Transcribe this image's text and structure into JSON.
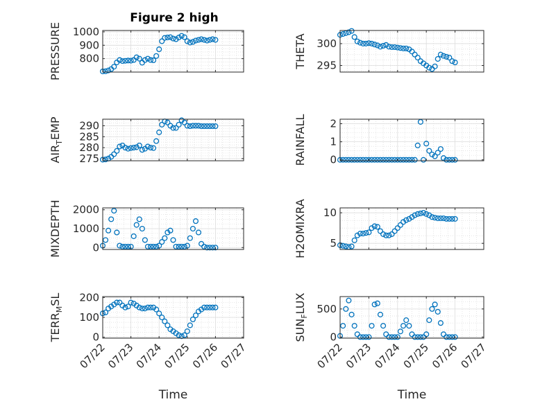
{
  "figure": {
    "title": "Figure 2 high"
  },
  "chart_data": [
    {
      "type": "scatter",
      "ylabel": "PRESSURE",
      "ylabel_parts": [
        "PRESSURE"
      ],
      "xlabel": "",
      "xlim": [
        "2014-07-22",
        "2014-07-27"
      ],
      "xticks": [
        "07/22",
        "07/23",
        "07/24",
        "07/25",
        "07/26",
        "07/27"
      ],
      "show_xticklabels": false,
      "ylim": [
        700,
        1010
      ],
      "yticks": [
        800,
        900,
        1000
      ],
      "grid": true,
      "marker_color": "#0072BD",
      "x_days": [
        0,
        0.1,
        0.2,
        0.3,
        0.4,
        0.5,
        0.6,
        0.7,
        0.8,
        0.9,
        1.0,
        1.1,
        1.2,
        1.3,
        1.4,
        1.5,
        1.6,
        1.7,
        1.8,
        1.9,
        2.0,
        2.1,
        2.2,
        2.3,
        2.4,
        2.5,
        2.6,
        2.7,
        2.8,
        2.9,
        3.0,
        3.1,
        3.2,
        3.3,
        3.4,
        3.5,
        3.6,
        3.7,
        3.8,
        3.9,
        4.0
      ],
      "y": [
        705,
        706,
        712,
        722,
        740,
        772,
        790,
        782,
        784,
        786,
        785,
        790,
        810,
        800,
        770,
        790,
        800,
        790,
        788,
        820,
        870,
        930,
        955,
        958,
        960,
        950,
        945,
        958,
        970,
        960,
        930,
        920,
        925,
        935,
        940,
        945,
        940,
        935,
        940,
        945,
        940
      ]
    },
    {
      "type": "scatter",
      "ylabel": "THETA",
      "ylabel_parts": [
        "THETA"
      ],
      "xlabel": "",
      "xlim": [
        "2014-07-22",
        "2014-07-27"
      ],
      "xticks": [
        "07/22",
        "07/23",
        "07/24",
        "07/25",
        "07/26",
        "07/27"
      ],
      "show_xticklabels": false,
      "ylim": [
        293.5,
        303
      ],
      "yticks": [
        295,
        300
      ],
      "grid": true,
      "marker_color": "#0072BD",
      "x_days": [
        0,
        0.1,
        0.2,
        0.3,
        0.4,
        0.5,
        0.6,
        0.7,
        0.8,
        0.9,
        1.0,
        1.1,
        1.2,
        1.3,
        1.4,
        1.5,
        1.6,
        1.7,
        1.8,
        1.9,
        2.0,
        2.1,
        2.2,
        2.3,
        2.4,
        2.5,
        2.6,
        2.7,
        2.8,
        2.9,
        3.0,
        3.1,
        3.2,
        3.3,
        3.4,
        3.5,
        3.6,
        3.7,
        3.8,
        3.9,
        4.0
      ],
      "y": [
        302.0,
        302.2,
        302.4,
        302.6,
        302.9,
        301.5,
        300.5,
        300.2,
        300.0,
        300.0,
        300.1,
        300.0,
        299.8,
        299.6,
        299.3,
        299.5,
        299.7,
        299.3,
        299.2,
        299.2,
        299.1,
        299.0,
        298.9,
        298.9,
        298.7,
        298.2,
        297.5,
        296.8,
        296.0,
        295.5,
        295.0,
        294.5,
        294.2,
        294.8,
        296.5,
        297.5,
        297.2,
        297.0,
        296.8,
        296.0,
        295.7
      ]
    },
    {
      "type": "scatter",
      "ylabel": "AIR_TEMP",
      "ylabel_parts": [
        "AIR",
        "T",
        "EMP"
      ],
      "xlabel": "",
      "xlim": [
        "2014-07-22",
        "2014-07-27"
      ],
      "xticks": [
        "07/22",
        "07/23",
        "07/24",
        "07/25",
        "07/26",
        "07/27"
      ],
      "show_xticklabels": false,
      "ylim": [
        274,
        293
      ],
      "yticks": [
        275,
        280,
        285,
        290
      ],
      "grid": true,
      "marker_color": "#0072BD",
      "x_days": [
        0,
        0.1,
        0.2,
        0.3,
        0.4,
        0.5,
        0.6,
        0.7,
        0.8,
        0.9,
        1.0,
        1.1,
        1.2,
        1.3,
        1.4,
        1.5,
        1.6,
        1.7,
        1.8,
        1.9,
        2.0,
        2.1,
        2.2,
        2.3,
        2.4,
        2.5,
        2.6,
        2.7,
        2.8,
        2.9,
        3.0,
        3.1,
        3.2,
        3.3,
        3.4,
        3.5,
        3.6,
        3.7,
        3.8,
        3.9,
        4.0
      ],
      "y": [
        274.5,
        274.6,
        275.0,
        275.8,
        277.0,
        278.5,
        280.5,
        281.0,
        280.0,
        279.5,
        279.8,
        280.0,
        280.2,
        281.0,
        279.0,
        279.5,
        280.5,
        280.0,
        279.8,
        283.0,
        287.0,
        290.5,
        292.0,
        291.5,
        290.0,
        289.0,
        289.0,
        290.5,
        292.5,
        291.5,
        290.0,
        289.8,
        290.0,
        290.0,
        290.0,
        289.8,
        289.8,
        289.8,
        289.8,
        289.8,
        289.8
      ]
    },
    {
      "type": "scatter",
      "ylabel": "RAINFALL",
      "ylabel_parts": [
        "RAINFALL"
      ],
      "xlabel": "",
      "xlim": [
        "2014-07-22",
        "2014-07-27"
      ],
      "xticks": [
        "07/22",
        "07/23",
        "07/24",
        "07/25",
        "07/26",
        "07/27"
      ],
      "show_xticklabels": false,
      "ylim": [
        -0.05,
        2.25
      ],
      "yticks": [
        0,
        1,
        2
      ],
      "grid": true,
      "marker_color": "#0072BD",
      "x_days": [
        0,
        0.1,
        0.2,
        0.3,
        0.4,
        0.5,
        0.6,
        0.7,
        0.8,
        0.9,
        1.0,
        1.1,
        1.2,
        1.3,
        1.4,
        1.5,
        1.6,
        1.7,
        1.8,
        1.9,
        2.0,
        2.1,
        2.2,
        2.3,
        2.4,
        2.5,
        2.6,
        2.7,
        2.8,
        2.9,
        3.0,
        3.1,
        3.2,
        3.3,
        3.4,
        3.5,
        3.6,
        3.7,
        3.8,
        3.9,
        4.0
      ],
      "y": [
        0,
        0,
        0,
        0,
        0,
        0,
        0,
        0,
        0,
        0,
        0,
        0,
        0,
        0,
        0,
        0,
        0,
        0,
        0,
        0,
        0,
        0,
        0,
        0,
        0,
        0,
        0,
        0.8,
        2.1,
        0,
        0.9,
        0.5,
        0.3,
        0.2,
        0.4,
        0.6,
        0.1,
        0,
        0,
        0,
        0
      ]
    },
    {
      "type": "scatter",
      "ylabel": "MIXDEPTH",
      "ylabel_parts": [
        "MIXDEPTH"
      ],
      "xlabel": "",
      "xlim": [
        "2014-07-22",
        "2014-07-27"
      ],
      "xticks": [
        "07/22",
        "07/23",
        "07/24",
        "07/25",
        "07/26",
        "07/27"
      ],
      "show_xticklabels": false,
      "ylim": [
        -100,
        2100
      ],
      "yticks": [
        0,
        1000,
        2000
      ],
      "grid": true,
      "marker_color": "#0072BD",
      "x_days": [
        0,
        0.1,
        0.2,
        0.3,
        0.4,
        0.5,
        0.6,
        0.7,
        0.8,
        0.9,
        1.0,
        1.1,
        1.2,
        1.3,
        1.4,
        1.5,
        1.6,
        1.7,
        1.8,
        1.9,
        2.0,
        2.1,
        2.2,
        2.3,
        2.4,
        2.5,
        2.6,
        2.7,
        2.8,
        2.9,
        3.0,
        3.1,
        3.2,
        3.3,
        3.4,
        3.5,
        3.6,
        3.7,
        3.8,
        3.9,
        4.0
      ],
      "y": [
        100,
        400,
        900,
        1500,
        1950,
        800,
        100,
        50,
        50,
        50,
        50,
        600,
        1200,
        1500,
        1000,
        400,
        50,
        50,
        50,
        50,
        100,
        300,
        500,
        800,
        900,
        400,
        50,
        50,
        50,
        50,
        100,
        500,
        1000,
        1400,
        800,
        200,
        50,
        0,
        0,
        0,
        0
      ]
    },
    {
      "type": "scatter",
      "ylabel": "H2OMIXRA",
      "ylabel_parts": [
        "H2OMIXRA"
      ],
      "xlabel": "",
      "xlim": [
        "2014-07-22",
        "2014-07-27"
      ],
      "xticks": [
        "07/22",
        "07/23",
        "07/24",
        "07/25",
        "07/26",
        "07/27"
      ],
      "show_xticklabels": false,
      "ylim": [
        4.0,
        10.8
      ],
      "yticks": [
        5,
        10
      ],
      "grid": true,
      "marker_color": "#0072BD",
      "x_days": [
        0,
        0.1,
        0.2,
        0.3,
        0.4,
        0.5,
        0.6,
        0.7,
        0.8,
        0.9,
        1.0,
        1.1,
        1.2,
        1.3,
        1.4,
        1.5,
        1.6,
        1.7,
        1.8,
        1.9,
        2.0,
        2.1,
        2.2,
        2.3,
        2.4,
        2.5,
        2.6,
        2.7,
        2.8,
        2.9,
        3.0,
        3.1,
        3.2,
        3.3,
        3.4,
        3.5,
        3.6,
        3.7,
        3.8,
        3.9,
        4.0
      ],
      "y": [
        4.7,
        4.6,
        4.5,
        4.4,
        4.5,
        5.5,
        6.3,
        6.6,
        6.6,
        6.7,
        6.8,
        7.5,
        7.8,
        7.7,
        7.0,
        6.5,
        6.3,
        6.3,
        6.5,
        7.0,
        7.5,
        8.0,
        8.5,
        8.8,
        9.0,
        9.3,
        9.6,
        9.8,
        9.9,
        10.0,
        9.8,
        9.6,
        9.3,
        9.2,
        9.1,
        9.1,
        9.1,
        9.0,
        9.0,
        9.0,
        9.0
      ]
    },
    {
      "type": "scatter",
      "ylabel": "TERR_MSL",
      "ylabel_parts": [
        "TERR",
        "M",
        "SL"
      ],
      "xlabel": "Time",
      "xlim": [
        "2014-07-22",
        "2014-07-27"
      ],
      "xticks": [
        "07/22",
        "07/23",
        "07/24",
        "07/25",
        "07/26",
        "07/27"
      ],
      "show_xticklabels": true,
      "ylim": [
        -5,
        205
      ],
      "yticks": [
        0,
        100,
        200
      ],
      "grid": true,
      "marker_color": "#0072BD",
      "x_days": [
        0,
        0.1,
        0.2,
        0.3,
        0.4,
        0.5,
        0.6,
        0.7,
        0.8,
        0.9,
        1.0,
        1.1,
        1.2,
        1.3,
        1.4,
        1.5,
        1.6,
        1.7,
        1.8,
        1.9,
        2.0,
        2.1,
        2.2,
        2.3,
        2.4,
        2.5,
        2.6,
        2.7,
        2.8,
        2.9,
        3.0,
        3.1,
        3.2,
        3.3,
        3.4,
        3.5,
        3.6,
        3.7,
        3.8,
        3.9,
        4.0
      ],
      "y": [
        120,
        125,
        145,
        155,
        165,
        175,
        175,
        160,
        150,
        155,
        175,
        170,
        160,
        150,
        145,
        145,
        150,
        150,
        150,
        140,
        120,
        100,
        80,
        60,
        40,
        30,
        20,
        10,
        5,
        10,
        30,
        60,
        90,
        110,
        130,
        140,
        150,
        150,
        150,
        150,
        150
      ]
    },
    {
      "type": "scatter",
      "ylabel": "SUN_FLUX",
      "ylabel_parts": [
        "SUN",
        "F",
        "LUX"
      ],
      "xlabel": "Time",
      "xlim": [
        "2014-07-22",
        "2014-07-27"
      ],
      "xticks": [
        "07/22",
        "07/23",
        "07/24",
        "07/25",
        "07/26",
        "07/27"
      ],
      "show_xticklabels": true,
      "ylim": [
        -20,
        720
      ],
      "yticks": [
        0,
        500
      ],
      "grid": true,
      "marker_color": "#0072BD",
      "x_days": [
        0,
        0.1,
        0.2,
        0.3,
        0.4,
        0.5,
        0.6,
        0.7,
        0.8,
        0.9,
        1.0,
        1.1,
        1.2,
        1.3,
        1.4,
        1.5,
        1.6,
        1.7,
        1.8,
        1.9,
        2.0,
        2.1,
        2.2,
        2.3,
        2.4,
        2.5,
        2.6,
        2.7,
        2.8,
        2.9,
        3.0,
        3.1,
        3.2,
        3.3,
        3.4,
        3.5,
        3.6,
        3.7,
        3.8,
        3.9,
        4.0
      ],
      "y": [
        20,
        200,
        500,
        650,
        400,
        200,
        50,
        0,
        0,
        0,
        0,
        200,
        580,
        600,
        400,
        200,
        50,
        0,
        0,
        0,
        0,
        100,
        200,
        300,
        200,
        50,
        0,
        0,
        0,
        0,
        50,
        300,
        500,
        580,
        450,
        250,
        50,
        0,
        0,
        0,
        0
      ]
    }
  ]
}
